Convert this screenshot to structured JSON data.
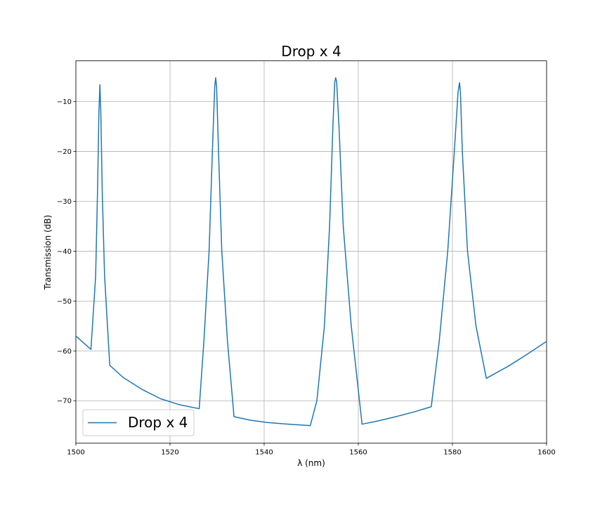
{
  "chart_data": {
    "type": "line",
    "title": "Drop x 4",
    "xlabel": "λ (nm)",
    "ylabel": "Transmission (dB)",
    "xlim": [
      1500,
      1600
    ],
    "ylim": [
      -78.5,
      -1.8
    ],
    "xticks": [
      1500,
      1520,
      1540,
      1560,
      1580,
      1600
    ],
    "yticks": [
      -70,
      -60,
      -50,
      -40,
      -30,
      -20,
      -10
    ],
    "xtick_labels": [
      "1500",
      "1520",
      "1540",
      "1560",
      "1580",
      "1600"
    ],
    "ytick_labels": [
      "−70",
      "−60",
      "−50",
      "−40",
      "−30",
      "−20",
      "−10"
    ],
    "grid": true,
    "legend_position": "lower-left",
    "color": "#1f77b4",
    "series": [
      {
        "name": "Drop x 4",
        "x": [
          1500,
          1503.2,
          1504.2,
          1504.6,
          1504.9,
          1505.1,
          1505.3,
          1505.6,
          1506.1,
          1507.2,
          1510,
          1514,
          1518,
          1522,
          1526.2,
          1527.2,
          1528.3,
          1529.0,
          1529.5,
          1529.7,
          1529.9,
          1530.3,
          1531.0,
          1532.2,
          1533.6,
          1537,
          1541,
          1545,
          1549.8,
          1551.2,
          1552.8,
          1553.9,
          1554.6,
          1555.0,
          1555.2,
          1555.4,
          1555.9,
          1556.8,
          1558.5,
          1560.8,
          1564,
          1568,
          1572,
          1575.5,
          1577.2,
          1579.0,
          1580.4,
          1581.2,
          1581.5,
          1581.7,
          1582.1,
          1583.2,
          1585.0,
          1587.2,
          1592,
          1596,
          1600
        ],
        "y": [
          -57.0,
          -59.7,
          -45,
          -28,
          -12,
          -6.6,
          -12,
          -28,
          -45,
          -62.9,
          -65.3,
          -67.7,
          -69.6,
          -70.8,
          -71.6,
          -58,
          -40,
          -20,
          -7,
          -5.2,
          -7,
          -20,
          -40,
          -58,
          -73.2,
          -73.9,
          -74.4,
          -74.7,
          -75.0,
          -70,
          -55,
          -35,
          -15,
          -6,
          -5.2,
          -6,
          -15,
          -35,
          -55,
          -74.7,
          -74.1,
          -73.2,
          -72.2,
          -71.2,
          -58,
          -40,
          -20,
          -8,
          -6.2,
          -8,
          -20,
          -40,
          -55,
          -65.5,
          -63.0,
          -60.6,
          -58.1
        ]
      }
    ]
  }
}
